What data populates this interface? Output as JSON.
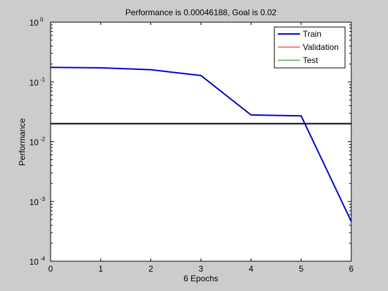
{
  "chart_data": {
    "type": "line",
    "title": "Performance is 0.00046188, Goal is 0.02",
    "xlabel": "6 Epochs",
    "ylabel": "Performance",
    "xlim": [
      0,
      6
    ],
    "ylim": [
      0.0001,
      1
    ],
    "yscale": "log",
    "x_ticks": [
      "0",
      "1",
      "2",
      "3",
      "4",
      "5",
      "6"
    ],
    "y_ticks": [
      {
        "base": "10",
        "exp": "-4"
      },
      {
        "base": "10",
        "exp": "-3"
      },
      {
        "base": "10",
        "exp": "-2"
      },
      {
        "base": "10",
        "exp": "-1"
      },
      {
        "base": "10",
        "exp": "0"
      }
    ],
    "legend_position": "top-right",
    "series": [
      {
        "name": "Train",
        "color": "#0000cc",
        "x": [
          0,
          1,
          2,
          3,
          4,
          5,
          6
        ],
        "values": [
          0.175,
          0.172,
          0.16,
          0.128,
          0.028,
          0.027,
          0.00046188
        ]
      },
      {
        "name": "Validation",
        "color": "#ff0000",
        "x": [],
        "values": []
      },
      {
        "name": "Test",
        "color": "#008000",
        "x": [],
        "values": []
      }
    ],
    "goal": {
      "value": 0.02,
      "color": "#000000"
    },
    "grid": false
  }
}
